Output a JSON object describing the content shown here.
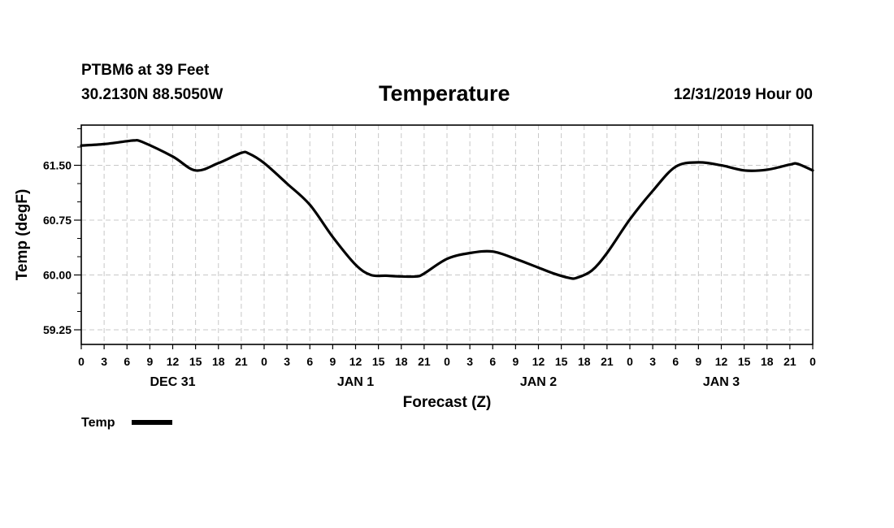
{
  "header": {
    "station": "PTBM6 at 39 Feet",
    "coords": "30.2130N 88.5050W",
    "run_time": "12/31/2019 Hour 00"
  },
  "chart_data": {
    "type": "line",
    "title": "Temperature",
    "xlabel": "Forecast (Z)",
    "ylabel": "Temp (degF)",
    "xlim": [
      0,
      96
    ],
    "ylim": [
      59.05,
      62.05
    ],
    "y_ticks": [
      59.25,
      60.0,
      60.75,
      61.5
    ],
    "y_tick_labels": [
      "59.25",
      "60.00",
      "60.75",
      "61.50"
    ],
    "y_minor_step": 0.25,
    "x_tick_step_hours": 3,
    "x_tick_labels": [
      "0",
      "3",
      "6",
      "9",
      "12",
      "15",
      "18",
      "21",
      "0",
      "3",
      "6",
      "9",
      "12",
      "15",
      "18",
      "21",
      "0",
      "3",
      "6",
      "9",
      "12",
      "15",
      "18",
      "21",
      "0",
      "3",
      "6",
      "9",
      "12",
      "15",
      "18",
      "21",
      "0"
    ],
    "day_labels": [
      {
        "label": "DEC 31",
        "hour": 12
      },
      {
        "label": "JAN 1",
        "hour": 36
      },
      {
        "label": "JAN 2",
        "hour": 60
      },
      {
        "label": "JAN 3",
        "hour": 84
      }
    ],
    "grid": true,
    "legend": "bottom-left",
    "series": [
      {
        "name": "Temp",
        "color": "#000000",
        "x": [
          0,
          3,
          6,
          7,
          8,
          12,
          15,
          18,
          21,
          22,
          24,
          27,
          30,
          33,
          36,
          38,
          40,
          42,
          44,
          45,
          48,
          51,
          54,
          57,
          60,
          62,
          64,
          65,
          67,
          69,
          72,
          75,
          78,
          81,
          84,
          87,
          90,
          93,
          94,
          96
        ],
        "y": [
          61.77,
          61.79,
          61.83,
          61.84,
          61.82,
          61.62,
          61.43,
          61.53,
          61.67,
          61.66,
          61.53,
          61.25,
          60.96,
          60.52,
          60.14,
          60.0,
          59.99,
          59.98,
          59.98,
          60.02,
          60.22,
          60.3,
          60.32,
          60.22,
          60.1,
          60.02,
          59.96,
          59.96,
          60.06,
          60.3,
          60.76,
          61.15,
          61.48,
          61.54,
          61.5,
          61.43,
          61.44,
          61.51,
          61.52,
          61.43
        ]
      }
    ]
  }
}
